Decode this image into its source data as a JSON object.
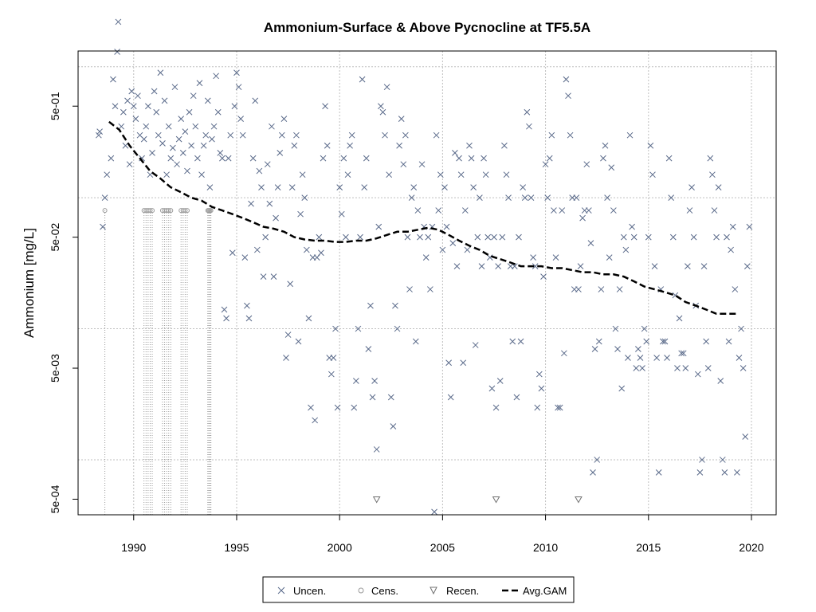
{
  "chart_data": {
    "type": "scatter",
    "title": "Ammonium-Surface & Above Pycnocline at TF5.5A",
    "xlabel": "",
    "ylabel": "Ammonium [mg/L]",
    "y_scale": "log",
    "xlim": [
      1987.3,
      2021.2
    ],
    "ylim_log10": [
      -3.42,
      0.12
    ],
    "x_ticks": [
      1990,
      1995,
      2000,
      2005,
      2010,
      2015,
      2020
    ],
    "y_ticks": [
      {
        "value": 0.5,
        "label": "5e-01"
      },
      {
        "value": 0.05,
        "label": "5e-02"
      },
      {
        "value": 0.005,
        "label": "5e-03"
      },
      {
        "value": 0.0005,
        "label": "5e-04"
      }
    ],
    "grid": true,
    "colors": {
      "uncensored": "#5a6a8a",
      "censored": "#9a9a9a",
      "recensored": "#707070",
      "gam": "#000000",
      "grid": "#bfbfbf"
    },
    "legend": {
      "placement": "bottom-center",
      "entries": [
        {
          "label": "Uncen.",
          "symbol": "x"
        },
        {
          "label": "Cens.",
          "symbol": "circle"
        },
        {
          "label": "Recen.",
          "symbol": "triangle-down"
        },
        {
          "label": "Avg.GAM",
          "symbol": "dashed-line"
        }
      ]
    },
    "uncensored": [
      [
        1988.3,
        0.3
      ],
      [
        1988.35,
        0.32
      ],
      [
        1988.5,
        0.06
      ],
      [
        1988.6,
        0.1
      ],
      [
        1988.7,
        0.15
      ],
      [
        1988.9,
        0.2
      ],
      [
        1989.0,
        0.8
      ],
      [
        1989.1,
        0.5
      ],
      [
        1989.2,
        1.3
      ],
      [
        1989.25,
        2.2
      ],
      [
        1989.4,
        0.35
      ],
      [
        1989.5,
        0.45
      ],
      [
        1989.6,
        0.25
      ],
      [
        1989.7,
        0.55
      ],
      [
        1989.8,
        0.18
      ],
      [
        1989.9,
        0.65
      ],
      [
        1990.0,
        0.5
      ],
      [
        1990.1,
        0.4
      ],
      [
        1990.2,
        0.6
      ],
      [
        1990.3,
        0.3
      ],
      [
        1990.4,
        0.2
      ],
      [
        1990.5,
        0.28
      ],
      [
        1990.6,
        0.35
      ],
      [
        1990.7,
        0.5
      ],
      [
        1990.8,
        0.15
      ],
      [
        1990.9,
        0.22
      ],
      [
        1991.0,
        0.65
      ],
      [
        1991.1,
        0.45
      ],
      [
        1991.2,
        0.3
      ],
      [
        1991.3,
        0.9
      ],
      [
        1991.4,
        0.26
      ],
      [
        1991.5,
        0.55
      ],
      [
        1991.6,
        0.15
      ],
      [
        1991.7,
        0.35
      ],
      [
        1991.8,
        0.2
      ],
      [
        1991.9,
        0.24
      ],
      [
        1992.0,
        0.7
      ],
      [
        1992.1,
        0.18
      ],
      [
        1992.2,
        0.28
      ],
      [
        1992.3,
        0.4
      ],
      [
        1992.4,
        0.22
      ],
      [
        1992.5,
        0.32
      ],
      [
        1992.6,
        0.16
      ],
      [
        1992.7,
        0.45
      ],
      [
        1992.8,
        0.25
      ],
      [
        1992.9,
        0.6
      ],
      [
        1993.0,
        0.35
      ],
      [
        1993.1,
        0.2
      ],
      [
        1993.2,
        0.75
      ],
      [
        1993.3,
        0.15
      ],
      [
        1993.4,
        0.25
      ],
      [
        1993.5,
        0.3
      ],
      [
        1993.6,
        0.55
      ],
      [
        1993.7,
        0.12
      ],
      [
        1993.8,
        0.28
      ],
      [
        1993.9,
        0.35
      ],
      [
        1994.0,
        0.85
      ],
      [
        1994.1,
        0.45
      ],
      [
        1994.2,
        0.22
      ],
      [
        1994.3,
        0.2
      ],
      [
        1994.4,
        0.014
      ],
      [
        1994.5,
        0.012
      ],
      [
        1994.6,
        0.2
      ],
      [
        1994.7,
        0.3
      ],
      [
        1994.8,
        0.038
      ],
      [
        1994.9,
        0.5
      ],
      [
        1995.0,
        0.9
      ],
      [
        1995.1,
        0.7
      ],
      [
        1995.2,
        0.4
      ],
      [
        1995.3,
        0.3
      ],
      [
        1995.4,
        0.035
      ],
      [
        1995.5,
        0.015
      ],
      [
        1995.6,
        0.012
      ],
      [
        1995.7,
        0.09
      ],
      [
        1995.8,
        0.2
      ],
      [
        1995.9,
        0.55
      ],
      [
        1996.0,
        0.04
      ],
      [
        1996.1,
        0.16
      ],
      [
        1996.2,
        0.12
      ],
      [
        1996.3,
        0.025
      ],
      [
        1996.4,
        0.05
      ],
      [
        1996.5,
        0.18
      ],
      [
        1996.6,
        0.09
      ],
      [
        1996.7,
        0.35
      ],
      [
        1996.8,
        0.025
      ],
      [
        1996.9,
        0.07
      ],
      [
        1997.0,
        0.12
      ],
      [
        1997.1,
        0.22
      ],
      [
        1997.2,
        0.3
      ],
      [
        1997.3,
        0.4
      ],
      [
        1997.4,
        0.006
      ],
      [
        1997.5,
        0.009
      ],
      [
        1997.6,
        0.022
      ],
      [
        1997.7,
        0.12
      ],
      [
        1997.8,
        0.25
      ],
      [
        1997.9,
        0.3
      ],
      [
        1998.0,
        0.008
      ],
      [
        1998.1,
        0.075
      ],
      [
        1998.2,
        0.15
      ],
      [
        1998.3,
        0.1
      ],
      [
        1998.4,
        0.04
      ],
      [
        1998.5,
        0.012
      ],
      [
        1998.6,
        0.0025
      ],
      [
        1998.7,
        0.035
      ],
      [
        1998.8,
        0.002
      ],
      [
        1998.9,
        0.035
      ],
      [
        1999.0,
        0.05
      ],
      [
        1999.1,
        0.038
      ],
      [
        1999.2,
        0.2
      ],
      [
        1999.3,
        0.5
      ],
      [
        1999.4,
        0.25
      ],
      [
        1999.5,
        0.006
      ],
      [
        1999.6,
        0.0045
      ],
      [
        1999.7,
        0.006
      ],
      [
        1999.8,
        0.01
      ],
      [
        1999.9,
        0.0025
      ],
      [
        2000.0,
        0.12
      ],
      [
        2000.1,
        0.075
      ],
      [
        2000.2,
        0.2
      ],
      [
        2000.3,
        0.05
      ],
      [
        2000.4,
        0.15
      ],
      [
        2000.5,
        0.25
      ],
      [
        2000.6,
        0.3
      ],
      [
        2000.7,
        0.0025
      ],
      [
        2000.8,
        0.004
      ],
      [
        2000.9,
        0.01
      ],
      [
        2001.0,
        0.05
      ],
      [
        2001.1,
        0.8
      ],
      [
        2001.2,
        0.12
      ],
      [
        2001.3,
        0.2
      ],
      [
        2001.4,
        0.007
      ],
      [
        2001.5,
        0.015
      ],
      [
        2001.6,
        0.003
      ],
      [
        2001.7,
        0.004
      ],
      [
        2001.8,
        0.0012
      ],
      [
        2001.9,
        0.06
      ],
      [
        2002.0,
        0.5
      ],
      [
        2002.1,
        0.45
      ],
      [
        2002.2,
        0.3
      ],
      [
        2002.3,
        0.7
      ],
      [
        2002.4,
        0.15
      ],
      [
        2002.5,
        0.003
      ],
      [
        2002.6,
        0.0018
      ],
      [
        2002.7,
        0.015
      ],
      [
        2002.8,
        0.01
      ],
      [
        2002.9,
        0.25
      ],
      [
        2003.0,
        0.4
      ],
      [
        2003.1,
        0.18
      ],
      [
        2003.2,
        0.3
      ],
      [
        2003.3,
        0.05
      ],
      [
        2003.4,
        0.02
      ],
      [
        2003.5,
        0.1
      ],
      [
        2003.6,
        0.12
      ],
      [
        2003.7,
        0.008
      ],
      [
        2003.8,
        0.08
      ],
      [
        2003.9,
        0.05
      ],
      [
        2004.0,
        0.18
      ],
      [
        2004.1,
        0.06
      ],
      [
        2004.2,
        0.035
      ],
      [
        2004.3,
        0.05
      ],
      [
        2004.4,
        0.02
      ],
      [
        2004.5,
        0.06
      ],
      [
        2004.6,
        0.0004
      ],
      [
        2004.7,
        0.3
      ],
      [
        2004.8,
        0.08
      ],
      [
        2004.9,
        0.15
      ],
      [
        2005.0,
        0.04
      ],
      [
        2005.1,
        0.12
      ],
      [
        2005.2,
        0.06
      ],
      [
        2005.3,
        0.0055
      ],
      [
        2005.4,
        0.003
      ],
      [
        2005.5,
        0.045
      ],
      [
        2005.6,
        0.22
      ],
      [
        2005.7,
        0.03
      ],
      [
        2005.8,
        0.2
      ],
      [
        2005.9,
        0.15
      ],
      [
        2006.0,
        0.0055
      ],
      [
        2006.1,
        0.08
      ],
      [
        2006.2,
        0.04
      ],
      [
        2006.3,
        0.25
      ],
      [
        2006.4,
        0.2
      ],
      [
        2006.5,
        0.12
      ],
      [
        2006.6,
        0.0075
      ],
      [
        2006.7,
        0.05
      ],
      [
        2006.8,
        0.1
      ],
      [
        2006.9,
        0.03
      ],
      [
        2007.0,
        0.2
      ],
      [
        2007.1,
        0.15
      ],
      [
        2007.2,
        0.05
      ],
      [
        2007.3,
        0.035
      ],
      [
        2007.4,
        0.0035
      ],
      [
        2007.5,
        0.05
      ],
      [
        2007.6,
        0.0025
      ],
      [
        2007.7,
        0.03
      ],
      [
        2007.8,
        0.004
      ],
      [
        2007.9,
        0.05
      ],
      [
        2008.0,
        0.25
      ],
      [
        2008.1,
        0.15
      ],
      [
        2008.2,
        0.1
      ],
      [
        2008.3,
        0.03
      ],
      [
        2008.4,
        0.008
      ],
      [
        2008.5,
        0.03
      ],
      [
        2008.6,
        0.003
      ],
      [
        2008.7,
        0.05
      ],
      [
        2008.8,
        0.008
      ],
      [
        2008.9,
        0.12
      ],
      [
        2009.0,
        0.1
      ],
      [
        2009.1,
        0.45
      ],
      [
        2009.2,
        0.35
      ],
      [
        2009.3,
        0.1
      ],
      [
        2009.4,
        0.035
      ],
      [
        2009.5,
        0.03
      ],
      [
        2009.6,
        0.0025
      ],
      [
        2009.7,
        0.0045
      ],
      [
        2009.8,
        0.0035
      ],
      [
        2009.9,
        0.025
      ],
      [
        2010.0,
        0.18
      ],
      [
        2010.1,
        0.1
      ],
      [
        2010.2,
        0.2
      ],
      [
        2010.3,
        0.3
      ],
      [
        2010.4,
        0.08
      ],
      [
        2010.5,
        0.035
      ],
      [
        2010.6,
        0.0025
      ],
      [
        2010.7,
        0.0025
      ],
      [
        2010.8,
        0.08
      ],
      [
        2010.9,
        0.0065
      ],
      [
        2011.0,
        0.8
      ],
      [
        2011.1,
        0.6
      ],
      [
        2011.2,
        0.3
      ],
      [
        2011.3,
        0.1
      ],
      [
        2011.4,
        0.02
      ],
      [
        2011.5,
        0.1
      ],
      [
        2011.6,
        0.02
      ],
      [
        2011.7,
        0.03
      ],
      [
        2011.8,
        0.07
      ],
      [
        2011.9,
        0.08
      ],
      [
        2012.0,
        0.18
      ],
      [
        2012.1,
        0.08
      ],
      [
        2012.2,
        0.045
      ],
      [
        2012.3,
        0.0008
      ],
      [
        2012.4,
        0.007
      ],
      [
        2012.5,
        0.001
      ],
      [
        2012.6,
        0.008
      ],
      [
        2012.7,
        0.02
      ],
      [
        2012.8,
        0.2
      ],
      [
        2012.9,
        0.25
      ],
      [
        2013.0,
        0.1
      ],
      [
        2013.1,
        0.035
      ],
      [
        2013.2,
        0.17
      ],
      [
        2013.3,
        0.08
      ],
      [
        2013.4,
        0.01
      ],
      [
        2013.5,
        0.007
      ],
      [
        2013.6,
        0.02
      ],
      [
        2013.7,
        0.0035
      ],
      [
        2013.8,
        0.05
      ],
      [
        2013.9,
        0.04
      ],
      [
        2014.0,
        0.006
      ],
      [
        2014.1,
        0.3
      ],
      [
        2014.2,
        0.06
      ],
      [
        2014.3,
        0.05
      ],
      [
        2014.4,
        0.005
      ],
      [
        2014.5,
        0.007
      ],
      [
        2014.6,
        0.006
      ],
      [
        2014.7,
        0.005
      ],
      [
        2014.8,
        0.01
      ],
      [
        2014.9,
        0.008
      ],
      [
        2015.0,
        0.05
      ],
      [
        2015.1,
        0.25
      ],
      [
        2015.2,
        0.15
      ],
      [
        2015.3,
        0.03
      ],
      [
        2015.4,
        0.006
      ],
      [
        2015.5,
        0.0008
      ],
      [
        2015.6,
        0.02
      ],
      [
        2015.7,
        0.008
      ],
      [
        2015.8,
        0.008
      ],
      [
        2015.9,
        0.006
      ],
      [
        2016.0,
        0.2
      ],
      [
        2016.1,
        0.1
      ],
      [
        2016.2,
        0.05
      ],
      [
        2016.3,
        0.018
      ],
      [
        2016.4,
        0.005
      ],
      [
        2016.5,
        0.012
      ],
      [
        2016.6,
        0.0065
      ],
      [
        2016.7,
        0.0065
      ],
      [
        2016.8,
        0.005
      ],
      [
        2016.9,
        0.03
      ],
      [
        2017.0,
        0.08
      ],
      [
        2017.1,
        0.12
      ],
      [
        2017.2,
        0.05
      ],
      [
        2017.3,
        0.015
      ],
      [
        2017.4,
        0.0045
      ],
      [
        2017.5,
        0.0008
      ],
      [
        2017.6,
        0.001
      ],
      [
        2017.7,
        0.03
      ],
      [
        2017.8,
        0.008
      ],
      [
        2017.9,
        0.005
      ],
      [
        2018.0,
        0.2
      ],
      [
        2018.1,
        0.15
      ],
      [
        2018.2,
        0.08
      ],
      [
        2018.3,
        0.05
      ],
      [
        2018.4,
        0.12
      ],
      [
        2018.5,
        0.004
      ],
      [
        2018.6,
        0.001
      ],
      [
        2018.7,
        0.0008
      ],
      [
        2018.8,
        0.05
      ],
      [
        2018.9,
        0.008
      ],
      [
        2019.0,
        0.04
      ],
      [
        2019.1,
        0.06
      ],
      [
        2019.2,
        0.02
      ],
      [
        2019.3,
        0.0008
      ],
      [
        2019.4,
        0.006
      ],
      [
        2019.5,
        0.01
      ],
      [
        2019.6,
        0.005
      ],
      [
        2019.7,
        0.0015
      ],
      [
        2019.8,
        0.03
      ],
      [
        2019.9,
        0.06
      ]
    ],
    "censored": [
      [
        1988.6,
        0.08
      ],
      [
        1990.5,
        0.08
      ],
      [
        1990.6,
        0.08
      ],
      [
        1990.7,
        0.08
      ],
      [
        1990.8,
        0.08
      ],
      [
        1990.9,
        0.08
      ],
      [
        1991.4,
        0.08
      ],
      [
        1991.5,
        0.08
      ],
      [
        1991.6,
        0.08
      ],
      [
        1991.7,
        0.08
      ],
      [
        1991.8,
        0.08
      ],
      [
        1992.3,
        0.08
      ],
      [
        1992.4,
        0.08
      ],
      [
        1992.5,
        0.08
      ],
      [
        1992.6,
        0.08
      ],
      [
        1993.6,
        0.08
      ],
      [
        1993.65,
        0.08
      ],
      [
        1993.7,
        0.08
      ],
      [
        1993.75,
        0.08
      ]
    ],
    "recensored": [
      [
        2001.8,
        0.0005
      ],
      [
        2007.6,
        0.0005
      ],
      [
        2011.6,
        0.0005
      ]
    ],
    "avg_gam": [
      [
        1988.8,
        0.38
      ],
      [
        1989.3,
        0.33
      ],
      [
        1989.8,
        0.25
      ],
      [
        1990.3,
        0.2
      ],
      [
        1990.8,
        0.16
      ],
      [
        1991.3,
        0.14
      ],
      [
        1991.8,
        0.12
      ],
      [
        1992.3,
        0.11
      ],
      [
        1992.8,
        0.1
      ],
      [
        1993.3,
        0.095
      ],
      [
        1993.8,
        0.085
      ],
      [
        1994.3,
        0.08
      ],
      [
        1994.8,
        0.075
      ],
      [
        1995.3,
        0.07
      ],
      [
        1995.8,
        0.065
      ],
      [
        1996.3,
        0.06
      ],
      [
        1996.8,
        0.058
      ],
      [
        1997.3,
        0.055
      ],
      [
        1997.8,
        0.05
      ],
      [
        1998.3,
        0.048
      ],
      [
        1998.8,
        0.047
      ],
      [
        1999.3,
        0.047
      ],
      [
        1999.8,
        0.046
      ],
      [
        2000.3,
        0.046
      ],
      [
        2000.8,
        0.047
      ],
      [
        2001.3,
        0.047
      ],
      [
        2001.8,
        0.049
      ],
      [
        2002.3,
        0.052
      ],
      [
        2002.8,
        0.055
      ],
      [
        2003.3,
        0.055
      ],
      [
        2003.8,
        0.057
      ],
      [
        2004.3,
        0.059
      ],
      [
        2004.8,
        0.057
      ],
      [
        2005.3,
        0.052
      ],
      [
        2005.8,
        0.047
      ],
      [
        2006.3,
        0.043
      ],
      [
        2006.8,
        0.04
      ],
      [
        2007.3,
        0.036
      ],
      [
        2007.8,
        0.034
      ],
      [
        2008.3,
        0.032
      ],
      [
        2008.8,
        0.03
      ],
      [
        2009.3,
        0.03
      ],
      [
        2009.8,
        0.03
      ],
      [
        2010.3,
        0.029
      ],
      [
        2010.8,
        0.029
      ],
      [
        2011.3,
        0.028
      ],
      [
        2011.8,
        0.027
      ],
      [
        2012.3,
        0.027
      ],
      [
        2012.8,
        0.026
      ],
      [
        2013.3,
        0.026
      ],
      [
        2013.8,
        0.025
      ],
      [
        2014.3,
        0.023
      ],
      [
        2014.8,
        0.021
      ],
      [
        2015.3,
        0.02
      ],
      [
        2015.8,
        0.019
      ],
      [
        2016.3,
        0.018
      ],
      [
        2016.8,
        0.016
      ],
      [
        2017.3,
        0.015
      ],
      [
        2017.8,
        0.014
      ],
      [
        2018.3,
        0.013
      ],
      [
        2018.8,
        0.013
      ],
      [
        2019.3,
        0.013
      ]
    ]
  }
}
